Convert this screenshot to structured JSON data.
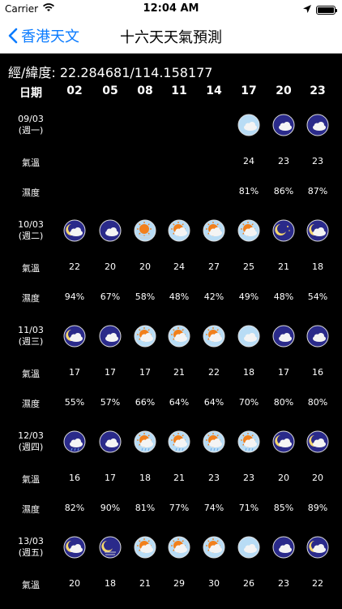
{
  "status_bar": {
    "carrier": "Carrier",
    "time": "12:04 AM",
    "battery_level": 1.0
  },
  "nav": {
    "back_label": "香港天文",
    "title": "十六天天氣預測"
  },
  "location": {
    "label": "經/緯度: 22.284681/114.158177"
  },
  "table": {
    "date_header": "日期",
    "hours": [
      "02",
      "05",
      "08",
      "11",
      "14",
      "17",
      "20",
      "23"
    ],
    "temp_label": "氣溫",
    "humidity_label": "濕度",
    "days": [
      {
        "date": "09/03",
        "weekday": "(週一)",
        "icons": [
          "",
          "",
          "",
          "",
          "",
          "cloud-day",
          "cloud-night",
          "cloud-night"
        ],
        "temps": [
          "",
          "",
          "",
          "",
          "",
          "24",
          "23",
          "23"
        ],
        "humidity": [
          "",
          "",
          "",
          "",
          "",
          "81%",
          "86%",
          "87%"
        ]
      },
      {
        "date": "10/03",
        "weekday": "(週二)",
        "icons": [
          "moon-cloud",
          "cloud-night",
          "sun-haze",
          "sun-cloud",
          "sun-cloud",
          "sun-cloud",
          "moon-stars",
          "moon-cloud"
        ],
        "temps": [
          "22",
          "20",
          "20",
          "24",
          "27",
          "25",
          "21",
          "18"
        ],
        "humidity": [
          "94%",
          "67%",
          "58%",
          "48%",
          "42%",
          "49%",
          "48%",
          "54%"
        ]
      },
      {
        "date": "11/03",
        "weekday": "(週三)",
        "icons": [
          "moon-cloud",
          "cloud-night",
          "sun-cloud",
          "sun-cloud",
          "sun-cloud",
          "cloud-day",
          "cloud-night",
          "cloud-night"
        ],
        "temps": [
          "17",
          "17",
          "17",
          "21",
          "22",
          "18",
          "17",
          "16"
        ],
        "humidity": [
          "55%",
          "57%",
          "66%",
          "64%",
          "64%",
          "70%",
          "80%",
          "80%"
        ]
      },
      {
        "date": "12/03",
        "weekday": "(週四)",
        "icons": [
          "cloud-rain-night",
          "cloud-night",
          "sun-rain",
          "sun-rain",
          "sun-rain",
          "sun-rain",
          "moon-cloud",
          "moon-cloud"
        ],
        "temps": [
          "16",
          "17",
          "18",
          "21",
          "23",
          "23",
          "20",
          "20"
        ],
        "humidity": [
          "82%",
          "90%",
          "81%",
          "77%",
          "74%",
          "71%",
          "85%",
          "89%"
        ]
      },
      {
        "date": "13/03",
        "weekday": "(週五)",
        "icons": [
          "moon-cloud",
          "moon-haze",
          "sun-cloud",
          "sun-cloud",
          "sun-cloud",
          "cloud-day",
          "cloud-night",
          "moon-cloud"
        ],
        "temps": [
          "20",
          "18",
          "21",
          "29",
          "30",
          "26",
          "23",
          "22"
        ],
        "humidity": []
      }
    ]
  },
  "colors": {
    "link": "#0a7bff",
    "background": "#000000",
    "text": "#ffffff",
    "night_icon": "#2a2a8a",
    "day_icon": "#b8dcf5",
    "sun": "#f2801c"
  }
}
